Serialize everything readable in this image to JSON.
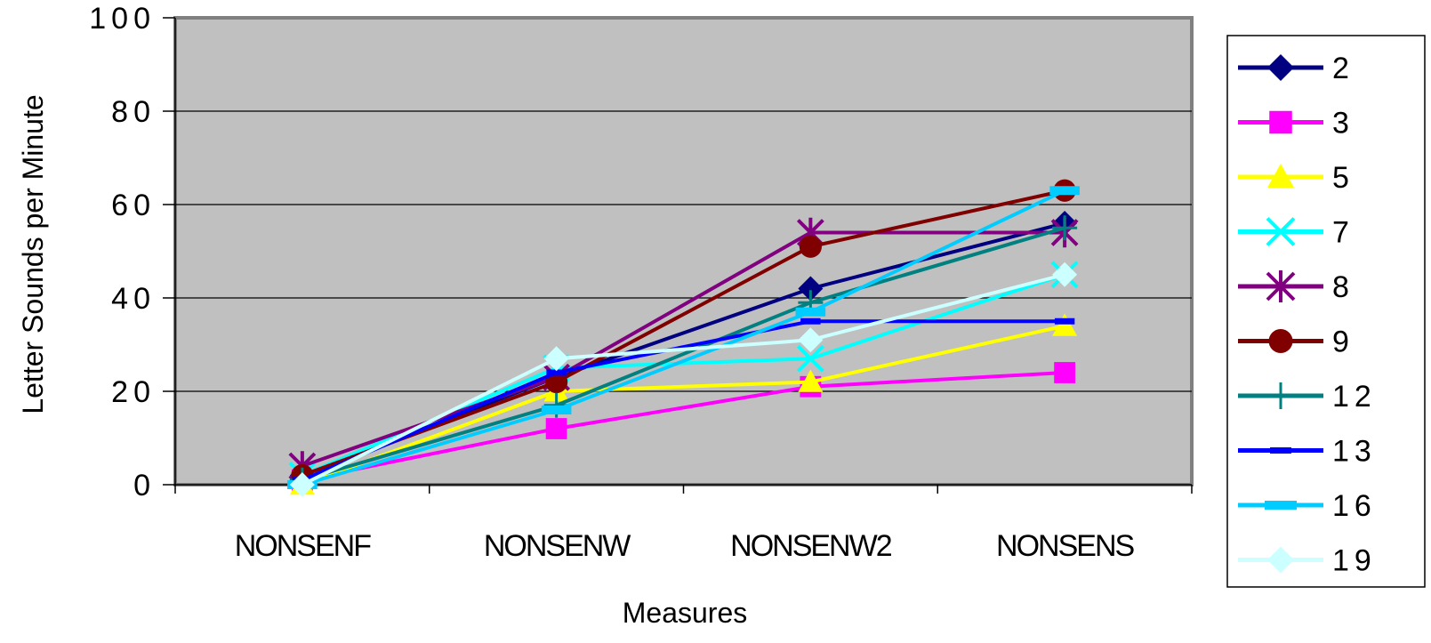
{
  "chart_data": {
    "type": "line",
    "categories": [
      "NONSENF",
      "NONSENW",
      "NONSENW2",
      "NONSENS"
    ],
    "xlabel": "Measures",
    "ylabel": "Letter Sounds per Minute",
    "ylim": [
      0,
      100
    ],
    "yticks": [
      "0",
      "20",
      "40",
      "60",
      "80",
      "100"
    ],
    "grid": true,
    "legend_position": "right",
    "plot_background": "#c0c0c0",
    "series": [
      {
        "name": "2",
        "color": "#000080",
        "marker": "diamond",
        "values": [
          2,
          23,
          42,
          56
        ]
      },
      {
        "name": "3",
        "color": "#ff00ff",
        "marker": "square",
        "values": [
          1,
          12,
          21,
          24
        ]
      },
      {
        "name": "5",
        "color": "#ffff00",
        "marker": "triangle",
        "values": [
          0,
          20,
          22,
          34
        ]
      },
      {
        "name": "7",
        "color": "#00ffff",
        "marker": "x",
        "values": [
          2,
          25,
          27,
          45
        ]
      },
      {
        "name": "8",
        "color": "#800080",
        "marker": "star",
        "values": [
          4,
          23,
          54,
          54
        ]
      },
      {
        "name": "9",
        "color": "#800000",
        "marker": "circle",
        "values": [
          2,
          22,
          51,
          63
        ]
      },
      {
        "name": "12",
        "color": "#008080",
        "marker": "plus",
        "values": [
          1,
          17,
          39,
          55
        ]
      },
      {
        "name": "13",
        "color": "#0000ff",
        "marker": "dash",
        "values": [
          1,
          24,
          35,
          35
        ]
      },
      {
        "name": "16",
        "color": "#00ccff",
        "marker": "bar",
        "values": [
          0,
          16,
          37,
          63
        ]
      },
      {
        "name": "19",
        "color": "#ccffff",
        "marker": "diamond",
        "values": [
          0,
          27,
          31,
          45
        ]
      }
    ]
  }
}
